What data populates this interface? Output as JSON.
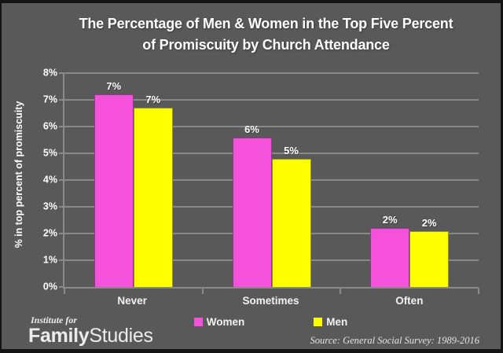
{
  "title": {
    "line1": "The Percentage of Men & Women in the Top Five Percent",
    "line2": "of Promiscuity by Church Attendance"
  },
  "chart_data": {
    "type": "bar",
    "title": "The Percentage of Men & Women in the Top Five Percent of Promiscuity by Church Attendance",
    "xlabel": "",
    "ylabel": "% in top percent of promiscuity",
    "ylim": [
      0,
      8
    ],
    "ytick_step": 1,
    "ytick_suffix": "%",
    "grid": true,
    "legend_position": "bottom",
    "categories": [
      "Never",
      "Sometimes",
      "Often"
    ],
    "series": [
      {
        "name": "Women",
        "color": "#F551DB",
        "values": [
          7.2,
          5.6,
          2.2
        ],
        "bar_labels": [
          "7%",
          "6%",
          "2%"
        ]
      },
      {
        "name": "Men",
        "color": "#FFFF00",
        "values": [
          6.7,
          4.8,
          2.1
        ],
        "bar_labels": [
          "7%",
          "5%",
          "2%"
        ]
      }
    ]
  },
  "footer": {
    "logo": {
      "top": "Institute for",
      "bold": "Family",
      "regular": "Studies"
    },
    "source": "Source: General Social Survey: 1989-2016"
  },
  "colors": {
    "background": "#595959",
    "frame_border": "#141414",
    "grid": "#8A8A8A",
    "text": "#FFFFFF",
    "women": "#F551DB",
    "men": "#FFFF00"
  }
}
